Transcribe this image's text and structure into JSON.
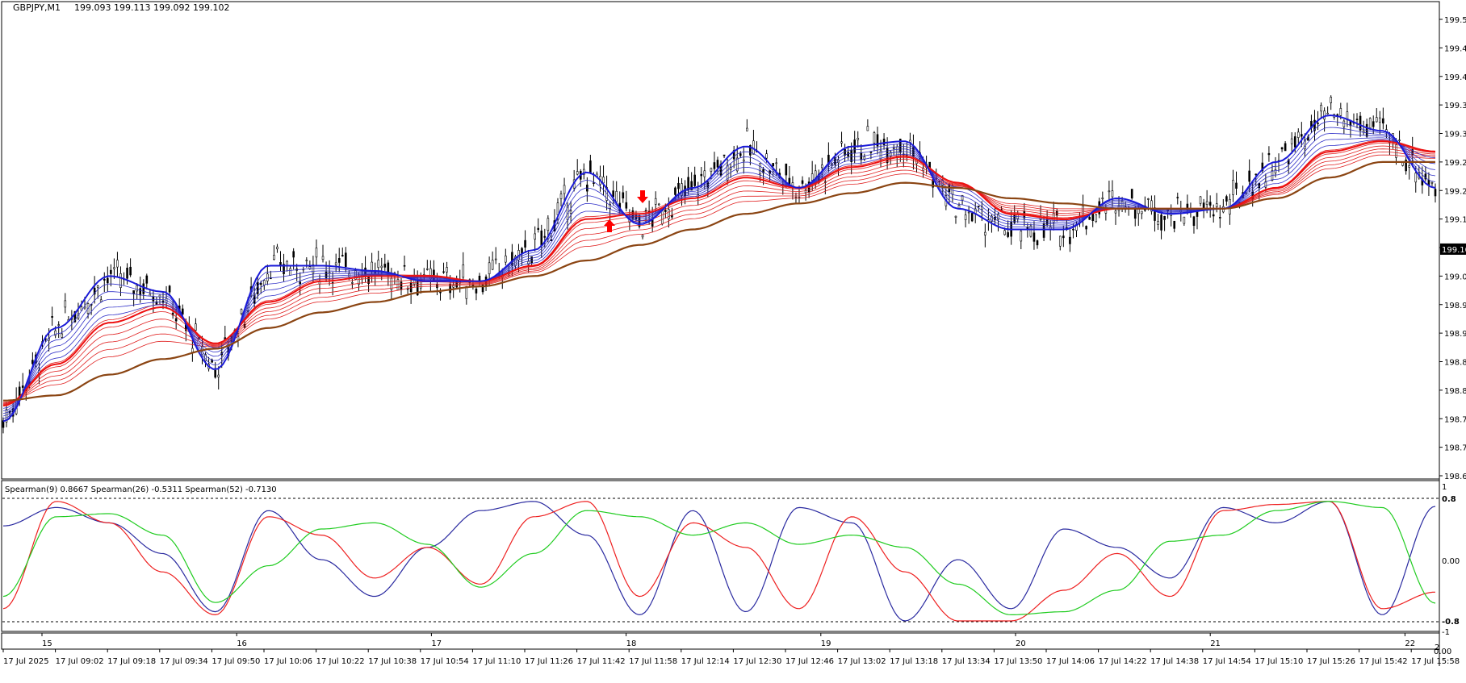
{
  "header": {
    "symbol_label": "GBPJPY,M1",
    "ohlc_label": "199.093 199.113 199.092 199.102"
  },
  "price_axis": {
    "ticks": [
      "199.545",
      "199.490",
      "199.435",
      "199.380",
      "199.325",
      "199.270",
      "199.215",
      "199.160",
      "199.105",
      "199.050",
      "198.995",
      "198.940",
      "198.885",
      "198.830",
      "198.775",
      "198.720",
      "198.665"
    ],
    "current_price": "199.102",
    "current_price_value": 199.102
  },
  "indicator": {
    "legend": "Spearman(9) 0.8667  Spearman(26) -0.5311  Spearman(52) -0.7130",
    "axis_labels": {
      "top": "1",
      "upper": "0.8",
      "zero": "0.00",
      "lower": "-0.8",
      "bottom": "-1"
    }
  },
  "time_axis": {
    "labels": [
      "17 Jul 2025",
      "17 Jul 09:02",
      "17 Jul 09:18",
      "17 Jul 09:34",
      "17 Jul 09:50",
      "17 Jul 10:06",
      "17 Jul 10:22",
      "17 Jul 10:38",
      "17 Jul 10:54",
      "17 Jul 11:10",
      "17 Jul 11:26",
      "17 Jul 11:42",
      "17 Jul 11:58",
      "17 Jul 12:14",
      "17 Jul 12:30",
      "17 Jul 12:46",
      "17 Jul 13:02",
      "17 Jul 13:18",
      "17 Jul 13:34",
      "17 Jul 13:50",
      "17 Jul 14:06",
      "17 Jul 14:22",
      "17 Jul 14:38",
      "17 Jul 14:54",
      "17 Jul 15:10",
      "17 Jul 15:26",
      "17 Jul 15:42",
      "17 Jul 15:58"
    ],
    "day_markers": [
      "15",
      "16",
      "17",
      "18",
      "19",
      "20",
      "21",
      "22"
    ],
    "corner_label": "2",
    "corner_zero": "0.00"
  },
  "colors": {
    "candle": "#000000",
    "fast_ema": "#1a1ad8",
    "fast_ribbon": "#3030c8",
    "slow_ribbon": "#e02020",
    "slow_ema": "#ee1010",
    "trend_ema": "#8b4513",
    "spearman9": "#2a2aa0",
    "spearman26": "#ee2020",
    "spearman52": "#20cc20",
    "arrow": "#ff0000",
    "price_box": "#000000"
  },
  "chart_data": {
    "type": "line",
    "title": "GBPJPY,M1",
    "ylim": [
      198.665,
      199.545
    ],
    "indicator_ylim": [
      -1,
      1
    ],
    "x": [
      "17 Jul 2025",
      "17 Jul 09:02",
      "17 Jul 09:18",
      "17 Jul 09:34",
      "17 Jul 09:50",
      "17 Jul 10:06",
      "17 Jul 10:22",
      "17 Jul 10:38",
      "17 Jul 10:54",
      "17 Jul 11:10",
      "17 Jul 11:26",
      "17 Jul 11:42",
      "17 Jul 11:58",
      "17 Jul 12:14",
      "17 Jul 12:30",
      "17 Jul 12:46",
      "17 Jul 13:02",
      "17 Jul 13:18",
      "17 Jul 13:34",
      "17 Jul 13:50",
      "17 Jul 14:06",
      "17 Jul 14:22",
      "17 Jul 14:38",
      "17 Jul 14:54",
      "17 Jul 15:10",
      "17 Jul 15:26",
      "17 Jul 15:42",
      "17 Jul 15:58"
    ],
    "series": [
      {
        "values": [
          198.77,
          198.95,
          199.05,
          199.02,
          198.87,
          199.07,
          199.07,
          199.06,
          199.04,
          199.04,
          199.1,
          199.25,
          199.15,
          199.22,
          199.3,
          199.22,
          199.3,
          199.31,
          199.18,
          199.14,
          199.14,
          199.2,
          199.17,
          199.18,
          199.27,
          199.36,
          199.33,
          199.22
        ]
      },
      {
        "values": [
          198.8,
          198.88,
          198.96,
          198.99,
          198.92,
          199.0,
          199.04,
          199.05,
          199.05,
          199.04,
          199.07,
          199.16,
          199.17,
          199.2,
          199.24,
          199.22,
          199.26,
          199.28,
          199.23,
          199.17,
          199.16,
          199.18,
          199.18,
          199.18,
          199.22,
          199.29,
          199.31,
          199.29
        ]
      },
      {
        "values": [
          198.81,
          198.82,
          198.86,
          198.89,
          198.91,
          198.95,
          198.98,
          199.0,
          199.02,
          199.03,
          199.05,
          199.08,
          199.11,
          199.14,
          199.17,
          199.19,
          199.21,
          199.23,
          199.22,
          199.2,
          199.19,
          199.18,
          199.18,
          199.18,
          199.2,
          199.24,
          199.27,
          199.27
        ]
      },
      {
        "values": [
          0.55,
          0.85,
          0.6,
          0.1,
          -0.85,
          0.8,
          0.0,
          -0.6,
          0.2,
          0.8,
          0.95,
          0.4,
          -0.9,
          0.8,
          -0.85,
          0.85,
          0.6,
          -1.0,
          0.0,
          -0.8,
          0.5,
          0.2,
          -0.3,
          0.85,
          0.6,
          0.95,
          -0.9,
          0.87
        ]
      },
      {
        "values": [
          -0.8,
          0.95,
          0.6,
          -0.2,
          -0.9,
          0.7,
          0.4,
          -0.3,
          0.2,
          -0.4,
          0.7,
          0.95,
          -0.6,
          0.6,
          0.2,
          -0.8,
          0.7,
          -0.2,
          -1.0,
          -1.0,
          -0.5,
          0.1,
          -0.6,
          0.8,
          0.9,
          0.95,
          -0.8,
          -0.53
        ]
      },
      {
        "values": [
          -0.6,
          0.7,
          0.75,
          0.4,
          -0.7,
          -0.1,
          0.5,
          0.6,
          0.25,
          -0.45,
          0.1,
          0.8,
          0.7,
          0.4,
          0.6,
          0.25,
          0.4,
          0.2,
          -0.4,
          -0.9,
          -0.85,
          -0.5,
          0.3,
          0.4,
          0.8,
          0.95,
          0.85,
          -0.71
        ]
      }
    ]
  }
}
